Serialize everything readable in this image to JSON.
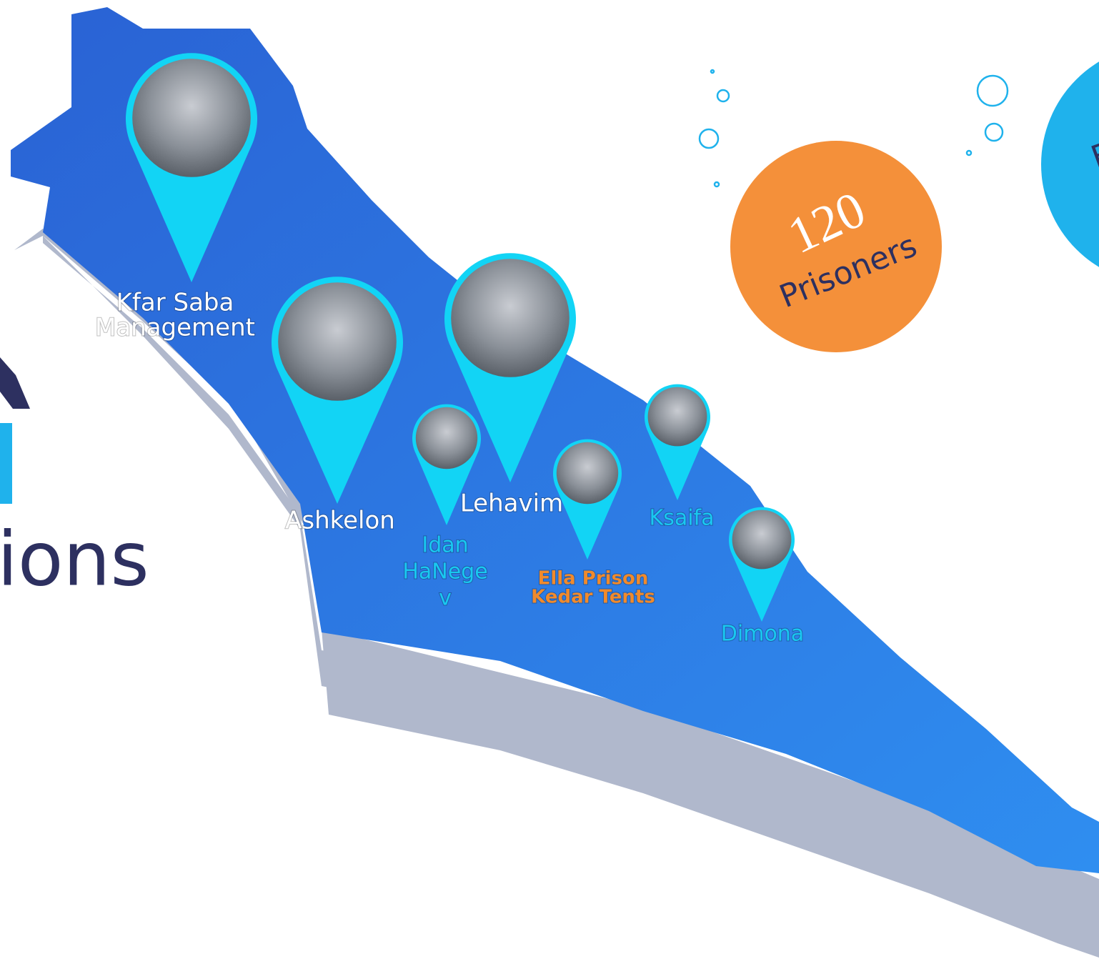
{
  "title_fragment": "ions",
  "badge": {
    "number": "120",
    "label": "Prisoners"
  },
  "right_badge_fragment": "E",
  "locations": [
    {
      "name": [
        "Kfar Saba",
        "Management"
      ],
      "color": "#ffffff"
    },
    {
      "name": [
        "Ashkelon"
      ],
      "color": "#ffffff"
    },
    {
      "name": [
        "Idan",
        "HaNege",
        "v"
      ],
      "color": "#19c8f0"
    },
    {
      "name": [
        "Lehavim"
      ],
      "color": "#ffffff"
    },
    {
      "name": [
        "Ella Prison",
        "Kedar Tents"
      ],
      "color": "#f08a2c"
    },
    {
      "name": [
        "Ksaifa"
      ],
      "color": "#19c8f0"
    },
    {
      "name": [
        "Dimona"
      ],
      "color": "#19c8f0"
    }
  ]
}
